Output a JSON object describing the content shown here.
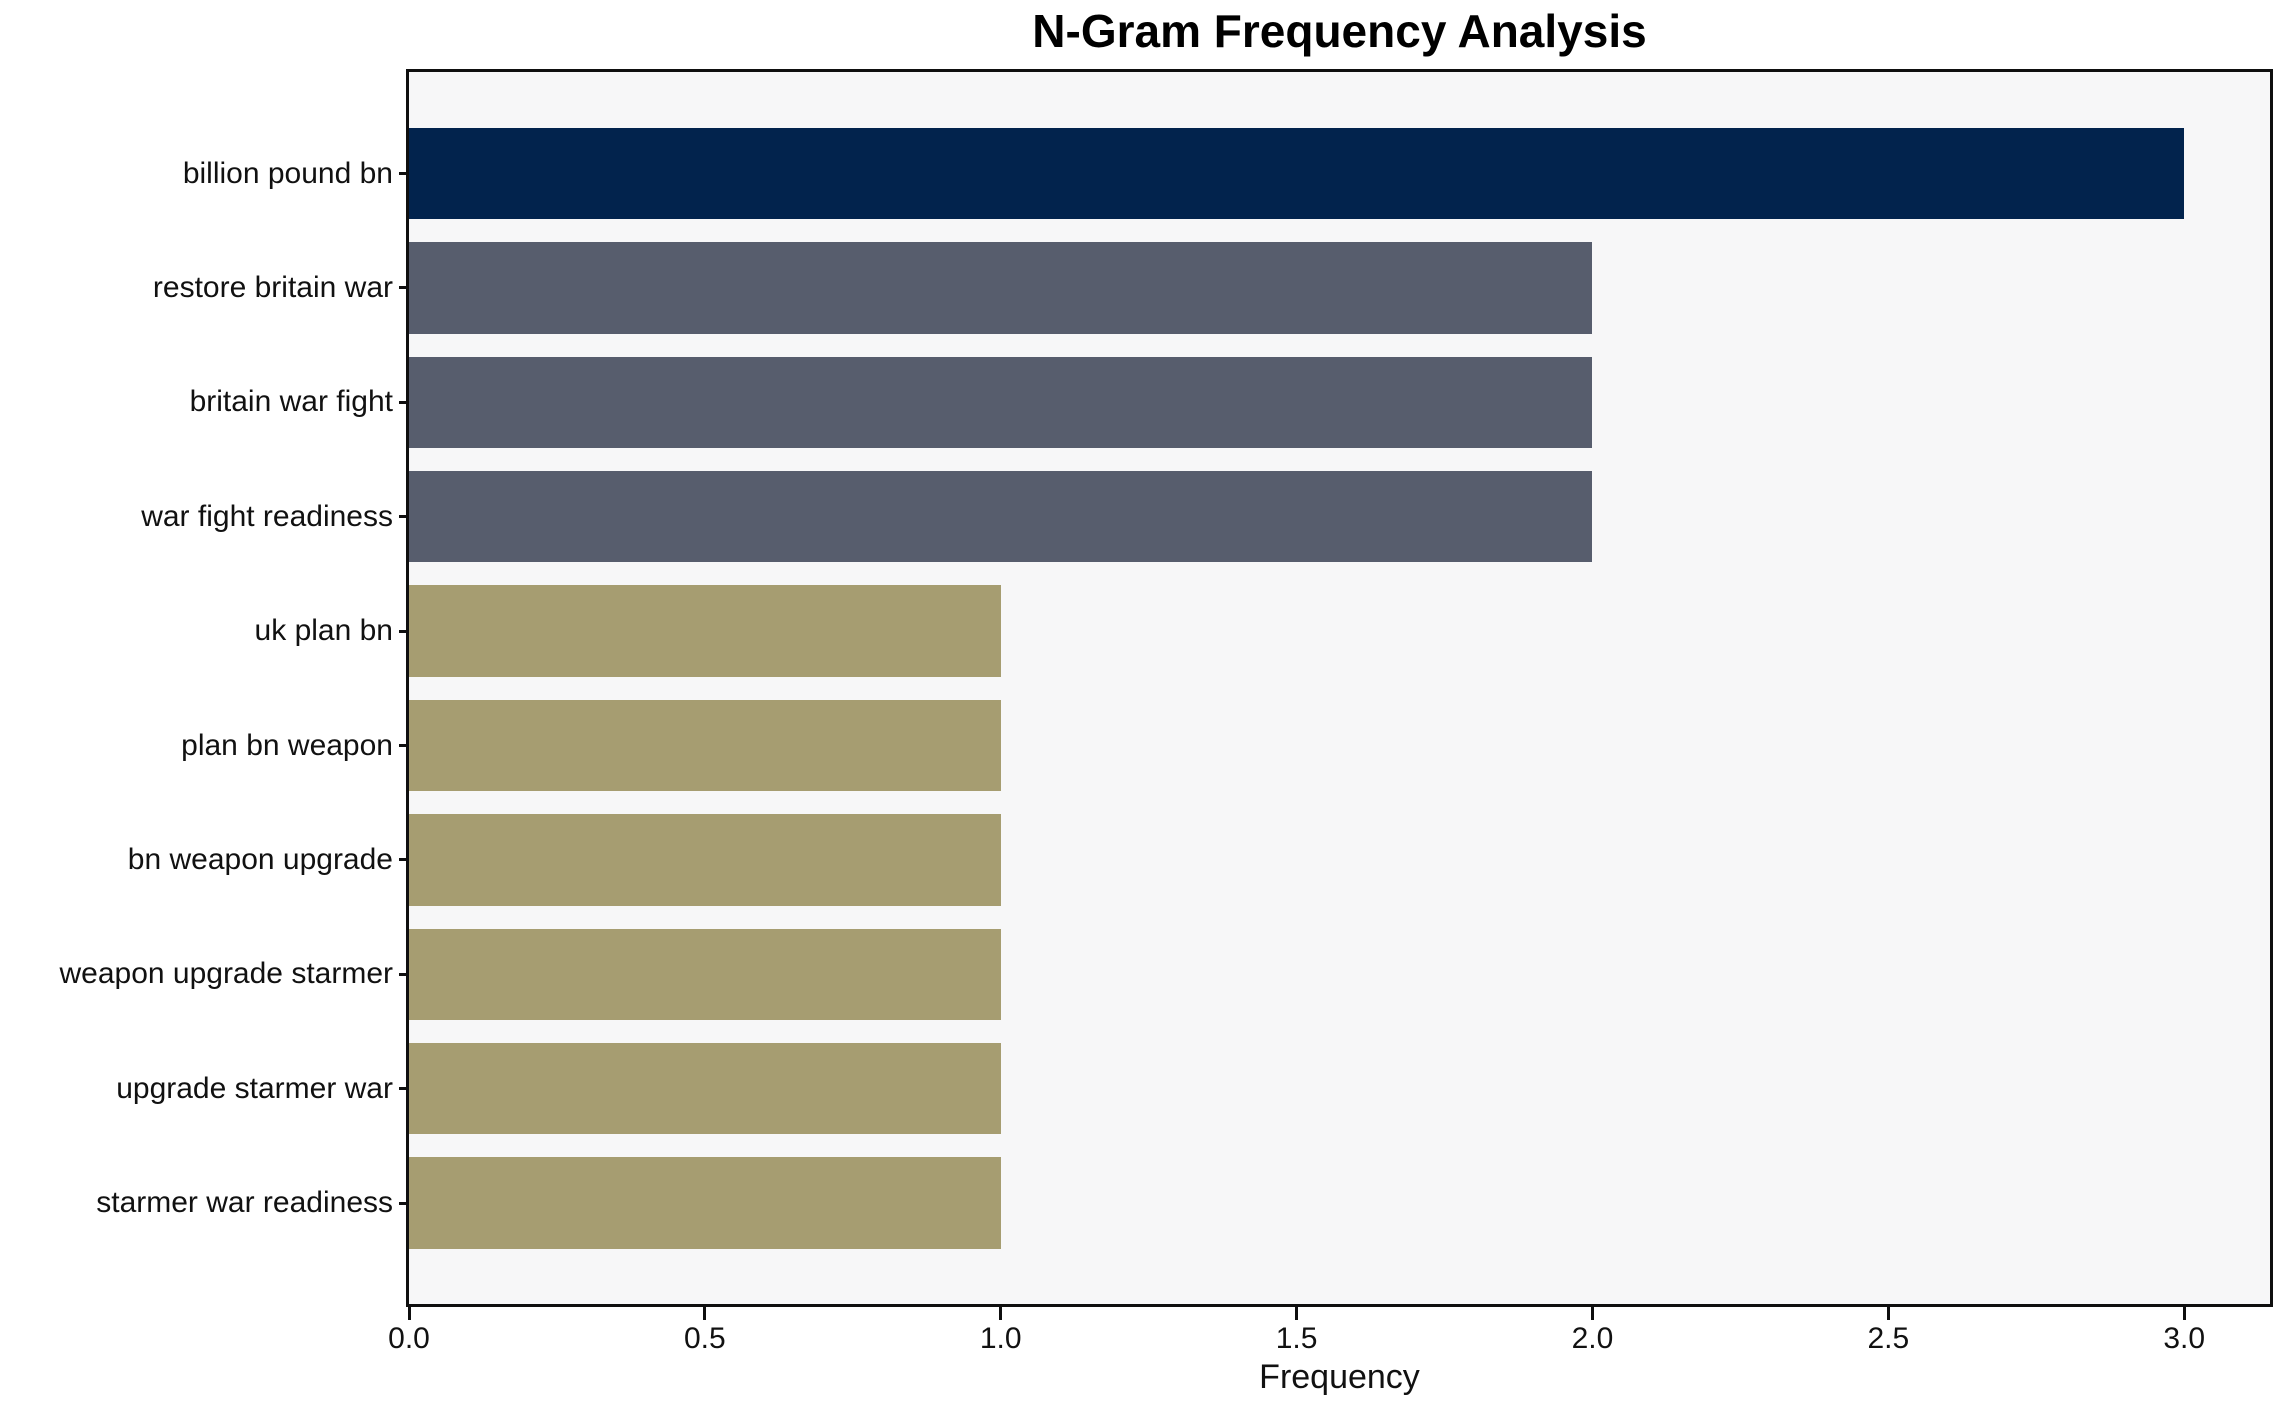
{
  "chart_data": {
    "type": "bar",
    "orientation": "horizontal",
    "title": "N-Gram Frequency Analysis",
    "xlabel": "Frequency",
    "ylabel": "",
    "categories": [
      "billion pound bn",
      "restore britain war",
      "britain war fight",
      "war fight readiness",
      "uk plan bn",
      "plan bn weapon",
      "bn weapon upgrade",
      "weapon upgrade starmer",
      "upgrade starmer war",
      "starmer war readiness"
    ],
    "values": [
      3,
      2,
      2,
      2,
      1,
      1,
      1,
      1,
      1,
      1
    ],
    "bar_colors": [
      "#02234d",
      "#575d6d",
      "#575d6d",
      "#575d6d",
      "#a69d71",
      "#a69d71",
      "#a69d71",
      "#a69d71",
      "#a69d71",
      "#a69d71"
    ],
    "x_tick_labels": [
      "0.0",
      "0.5",
      "1.0",
      "1.5",
      "2.0",
      "2.5",
      "3.0"
    ],
    "x_tick_values": [
      0.0,
      0.5,
      1.0,
      1.5,
      2.0,
      2.5,
      3.0
    ],
    "xlim": [
      0,
      3.145
    ],
    "grid": false,
    "legend": null,
    "colors": {
      "plot_background": "#f7f7f8",
      "figure_background": "#ffffff",
      "axis": "#0f0f0f",
      "text": "#111111"
    }
  }
}
